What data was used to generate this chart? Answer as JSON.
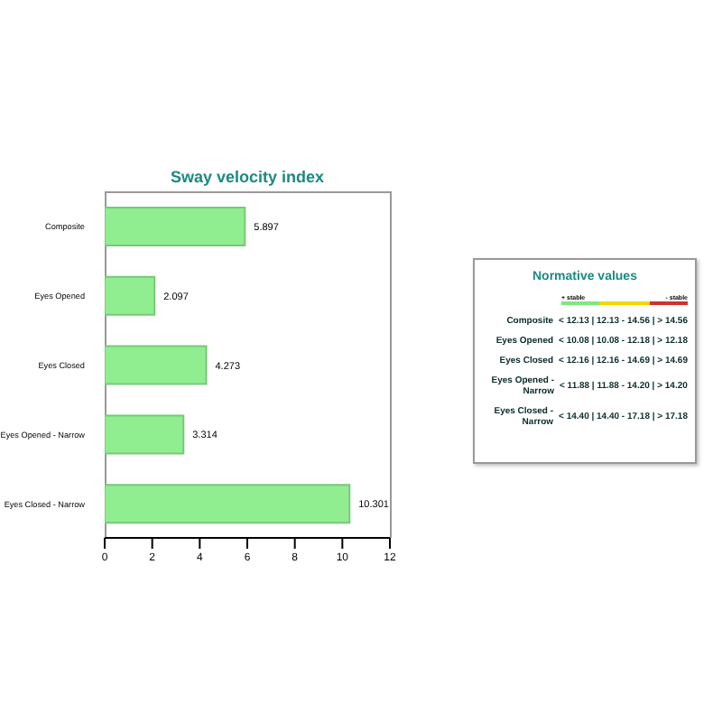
{
  "chart_data": [
    {
      "type": "bar",
      "orientation": "horizontal",
      "title": "Sway velocity index",
      "categories": [
        "Composite",
        "Eyes Opened",
        "Eyes Closed",
        "Eyes Opened - Narrow",
        "Eyes Closed - Narrow"
      ],
      "values": [
        5.897,
        2.097,
        4.273,
        3.314,
        10.301
      ],
      "color": "#90ee90",
      "xlim": [
        0,
        12
      ],
      "xticks": [
        0,
        2,
        4,
        6,
        8,
        10,
        12
      ],
      "data_labels": true
    },
    {
      "type": "other",
      "title": "Normative values",
      "annotations": [
        "+ stable",
        "- stable",
        "Composite",
        "< 12.13 | 12.13 - 14.56 | > 14.56",
        "Eyes Opened",
        "< 10.08 | 10.08 - 12.18 | > 12.18",
        "Eyes Closed",
        "< 12.16 | 12.16 - 14.69 | > 14.69",
        "Eyes Opened - Narrow",
        "< 11.88 | 11.88 - 14.20 | > 14.20",
        "Eyes Closed - Narrow",
        "< 14.40 | 14.40 - 17.18 | > 17.18"
      ]
    }
  ]
}
